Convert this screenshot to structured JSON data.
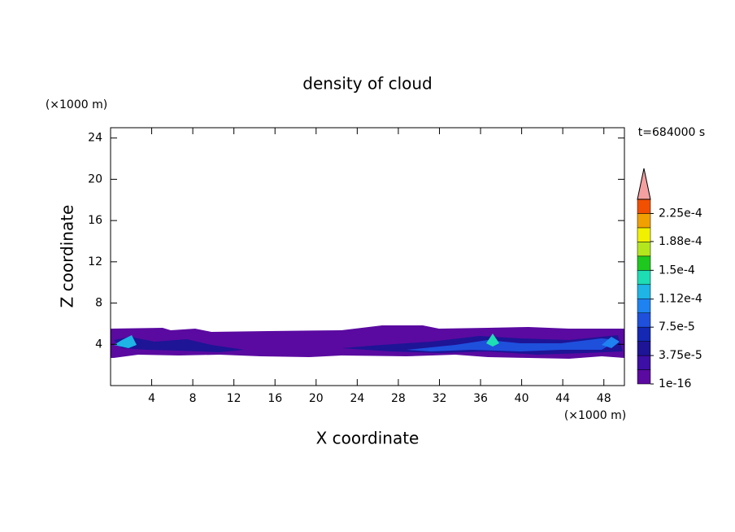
{
  "chart_data": {
    "type": "contour",
    "title": "density of cloud",
    "x_label": "X coordinate",
    "y_label": "Z coordinate",
    "x_unit": "(×1000 m)",
    "y_unit": "(×1000 m)",
    "annotation": "t=684000 s",
    "xlim": [
      0,
      50
    ],
    "xticks": [
      4,
      8,
      12,
      16,
      20,
      24,
      28,
      32,
      36,
      40,
      44,
      48
    ],
    "ylim": [
      0,
      25
    ],
    "yticks": [
      4,
      8,
      12,
      16,
      20,
      24
    ],
    "colorbar": {
      "clim": [
        0,
        0.00024375
      ],
      "ticks": [
        {
          "value": 1e-16,
          "label": "1e-16"
        },
        {
          "value": 3.75e-05,
          "label": "3.75e-5"
        },
        {
          "value": 7.5e-05,
          "label": "7.5e-5"
        },
        {
          "value": 0.000112,
          "label": "1.12e-4"
        },
        {
          "value": 0.00015,
          "label": "1.5e-4"
        },
        {
          "value": 0.000188,
          "label": "1.88e-4"
        },
        {
          "value": 0.000225,
          "label": "2.25e-4"
        }
      ],
      "colors": [
        "#5a0aa0",
        "#3c0fa5",
        "#1e1496",
        "#1428b4",
        "#1e50dc",
        "#1e82f0",
        "#1eb4e6",
        "#1edcb4",
        "#1ec81e",
        "#b4e61e",
        "#f0f000",
        "#f0a000",
        "#f05000"
      ],
      "extend_color": "#f4a0a0"
    }
  }
}
